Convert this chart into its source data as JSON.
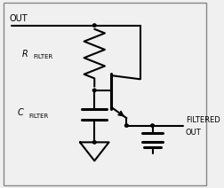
{
  "bg_color": "#f0f0f0",
  "border_color": "#888888",
  "line_color": "#000000",
  "text_color": "#000000",
  "out_label": "OUT",
  "r_label_main": "R",
  "r_label_sub": "FILTER",
  "c_label_main": "C",
  "c_label_sub": "FILTER",
  "filtered_out_line1": "FILTERED",
  "filtered_out_line2": "OUT",
  "fig_width": 2.53,
  "fig_height": 2.12,
  "dpi": 100
}
